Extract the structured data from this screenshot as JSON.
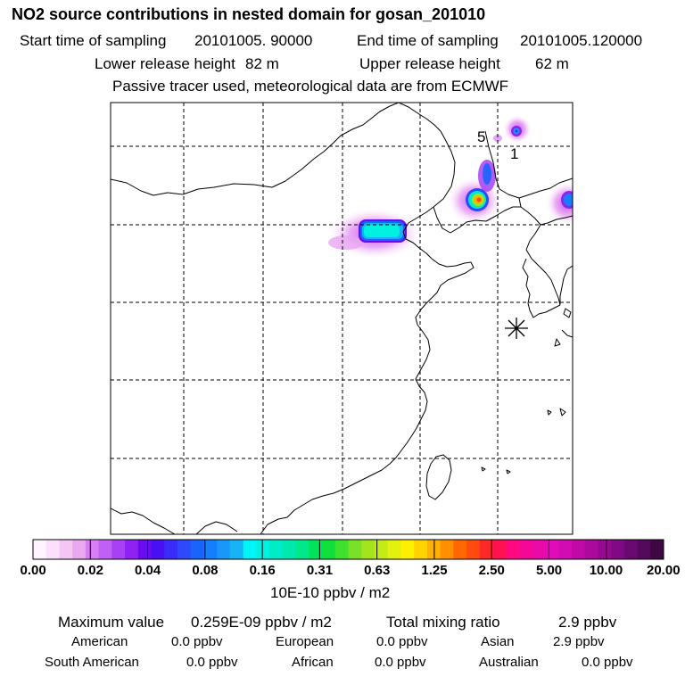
{
  "title": "NO2 source contributions in nested domain for gosan_201010",
  "sampling": {
    "start_label": "Start time of sampling",
    "start_value": "20101005. 90000",
    "end_label": "End time of sampling",
    "end_value": "20101005.120000"
  },
  "release": {
    "lower_label": "Lower release height",
    "lower_value": "82 m",
    "upper_label": "Upper release height",
    "upper_value": "62 m"
  },
  "note": "Passive tracer used, meteorological data are from ECMWF",
  "map": {
    "contour_labels": [
      "5",
      "1"
    ],
    "station_marker": "star"
  },
  "colorbar": {
    "tick_labels": [
      "0.00",
      "0.02",
      "0.04",
      "0.08",
      "0.16",
      "0.31",
      "0.63",
      "1.25",
      "2.50",
      "5.00",
      "10.00",
      "20.00"
    ],
    "unit": "10E-10 ppbv / m2",
    "colors": [
      "#fff4ff",
      "#fbe0fb",
      "#f4c6f4",
      "#eaa8f0",
      "#d67ef2",
      "#c060f4",
      "#a840f4",
      "#8e22f2",
      "#6a0cf0",
      "#4a10f4",
      "#3a2cf8",
      "#2e48fa",
      "#1a64fc",
      "#147efc",
      "#1a98fa",
      "#18b2f6",
      "#00f6f6",
      "#00f0e2",
      "#00ecc8",
      "#00e8ac",
      "#00e88a",
      "#00e45c",
      "#10e03c",
      "#40e030",
      "#7ae028",
      "#a2e41e",
      "#c4ea18",
      "#e4f010",
      "#fff000",
      "#ffd400",
      "#ffb000",
      "#ff9000",
      "#ff6800",
      "#ff4a10",
      "#ff2828",
      "#ff1250",
      "#ff0880",
      "#f40896",
      "#ea0aa8",
      "#e00cb8",
      "#d20cb2",
      "#c00aa8",
      "#ac0a9c",
      "#960a90",
      "#800a84",
      "#6a0a70",
      "#540a5a",
      "#3e0844"
    ]
  },
  "footer": {
    "max_label": "Maximum value",
    "max_value": "0.259E-09 ppbv / m2",
    "total_label": "Total mixing ratio",
    "total_value": "2.9 ppbv",
    "regions": [
      {
        "name": "American",
        "value": "0.0 ppbv"
      },
      {
        "name": "European",
        "value": "0.0 ppbv"
      },
      {
        "name": "Asian",
        "value": "2.9 ppbv"
      },
      {
        "name": "South American",
        "value": "0.0 ppbv"
      },
      {
        "name": "African",
        "value": "0.0 ppbv"
      },
      {
        "name": "Australian",
        "value": "0.0 ppbv"
      }
    ]
  }
}
